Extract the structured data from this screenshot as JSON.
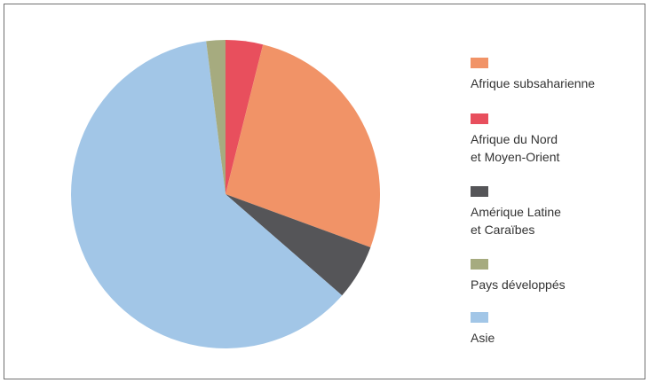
{
  "chart_data": {
    "type": "pie",
    "slices": [
      {
        "label": "Afrique subsaharienne",
        "value": 26.7,
        "color": "#f19367"
      },
      {
        "label": "Afrique du Nord\net Moyen-Orient",
        "value": 3.9,
        "color": "#e84f5d"
      },
      {
        "label": "Amérique Latine\net Caraïbes",
        "value": 5.8,
        "color": "#555558"
      },
      {
        "label": "Pays développés",
        "value": 2.0,
        "color": "#a6ab7f"
      },
      {
        "label": "Asie",
        "value": 61.6,
        "color": "#a2c6e7"
      }
    ],
    "draw_order": [
      1,
      0,
      2,
      4,
      3
    ],
    "start_angle_deg": 0,
    "direction": "clockwise",
    "legend_position": "right"
  }
}
